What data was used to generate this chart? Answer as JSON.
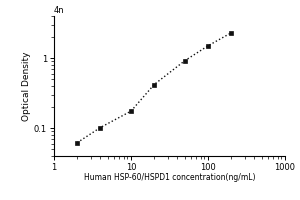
{
  "x_data": [
    2,
    4,
    10,
    20,
    50,
    100,
    200
  ],
  "y_data": [
    0.062,
    0.102,
    0.175,
    0.42,
    0.92,
    1.5,
    2.3
  ],
  "xlabel": "Human HSP-60/HSPD1 concentration(ng/mL)",
  "ylabel": "Optical Density",
  "xlim": [
    1,
    1000
  ],
  "ylim": [
    0.04,
    4
  ],
  "marker": "s",
  "marker_color": "#111111",
  "marker_size": 3.5,
  "line_color": "#111111",
  "line_style": ":",
  "line_width": 1.0,
  "background_color": "#ffffff",
  "xlabel_fontsize": 5.5,
  "ylabel_fontsize": 6.5,
  "tick_fontsize": 6,
  "top_label": "4n"
}
